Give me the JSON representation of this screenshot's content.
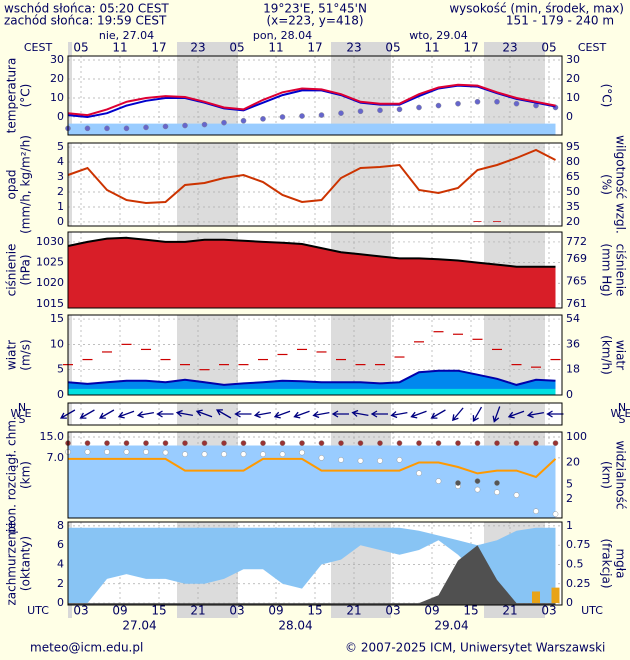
{
  "header": {
    "sunrise": "wschód słońca: 05:20 CEST",
    "sunset": "zachód słońca: 19:59 CEST",
    "coords": "19°23'E, 51°45'N",
    "grid": "(x=223, y=418)",
    "height_title": "wysokość (min, środek, max)",
    "height_values": "151 - 179 - 240 m"
  },
  "footer": {
    "email": "meteo@icm.edu.pl",
    "copyright": "© 2007-2025 ICM, Uniwersytet Warszawski"
  },
  "time": {
    "label_top": "CEST",
    "label_bottom": "UTC",
    "xlim": [
      1,
      77
    ],
    "x": [
      1,
      4,
      7,
      10,
      13,
      16,
      19,
      22,
      25,
      28,
      31,
      34,
      37,
      40,
      43,
      46,
      49,
      52,
      55,
      58,
      61,
      64,
      67,
      70,
      73,
      76
    ],
    "xticks_cest": [
      {
        "value": 3,
        "label": "05"
      },
      {
        "value": 9,
        "label": "11"
      },
      {
        "value": 15,
        "label": "17"
      },
      {
        "value": 21,
        "label": "23"
      },
      {
        "value": 27,
        "label": "05"
      },
      {
        "value": 33,
        "label": "11"
      },
      {
        "value": 39,
        "label": "17"
      },
      {
        "value": 45,
        "label": "23"
      },
      {
        "value": 51,
        "label": "05"
      },
      {
        "value": 57,
        "label": "11"
      },
      {
        "value": 63,
        "label": "17"
      },
      {
        "value": 69,
        "label": "23"
      },
      {
        "value": 75,
        "label": "05"
      }
    ],
    "xticks_utc": [
      {
        "value": 3,
        "label": "03"
      },
      {
        "value": 9,
        "label": "09"
      },
      {
        "value": 15,
        "label": "15"
      },
      {
        "value": 21,
        "label": "21"
      },
      {
        "value": 27,
        "label": "03"
      },
      {
        "value": 33,
        "label": "09"
      },
      {
        "value": 39,
        "label": "15"
      },
      {
        "value": 45,
        "label": "21"
      },
      {
        "value": 51,
        "label": "03"
      },
      {
        "value": 57,
        "label": "09"
      },
      {
        "value": 63,
        "label": "15"
      },
      {
        "value": 69,
        "label": "21"
      },
      {
        "value": 75,
        "label": "03"
      }
    ],
    "day_labels": [
      {
        "value": 10,
        "label": "nie, 27.04"
      },
      {
        "value": 34,
        "label": "pon, 28.04"
      },
      {
        "value": 58,
        "label": "wto, 29.04"
      }
    ],
    "date_labels": [
      {
        "value": 12,
        "label": "27.04"
      },
      {
        "value": 36,
        "label": "28.04"
      },
      {
        "value": 60,
        "label": "29.04"
      }
    ]
  },
  "chart_data": [
    {
      "type": "line",
      "ylabel": [
        "temperatura",
        "(°C)"
      ],
      "y2label": [
        "(°C)"
      ],
      "ylim": [
        -9.5,
        32.1
      ],
      "yticks": [
        0,
        10,
        20,
        30
      ],
      "y2lim": [
        -9.5,
        32.1
      ],
      "y2ticks": [
        0,
        10,
        20,
        30
      ],
      "series": [
        {
          "style": "area",
          "color": "#99ccff",
          "values": [
            -3.5,
            -3.5,
            -3.5,
            -3.5,
            -3.5,
            -3.5,
            -3.5,
            -3.5,
            -3.5,
            -3.5,
            -3.5,
            -3.5,
            -3.5,
            -3.5,
            -3.5,
            -3.5,
            -3.5,
            -3.5,
            -3.5,
            -3.5,
            -3.5,
            -3.5,
            -3.5,
            -3.5,
            -3.5,
            -3.5
          ]
        },
        {
          "style": "dots",
          "color": "#6666cc",
          "values": [
            -6,
            -6,
            -6,
            -6,
            -5.5,
            -5,
            -4.5,
            -4,
            -3,
            -2,
            -1,
            0,
            0.5,
            1,
            2,
            3,
            3.5,
            4,
            5,
            6,
            7,
            8,
            8,
            7,
            6,
            5
          ]
        },
        {
          "style": "line",
          "color": "#0000cc",
          "values": [
            1,
            0,
            2,
            6,
            8.5,
            10,
            10,
            7.5,
            4.5,
            3.5,
            7.5,
            11.5,
            14,
            14,
            11.5,
            7.5,
            6.5,
            6.5,
            11,
            15,
            16.5,
            16,
            12.5,
            9.5,
            7.5,
            5.5
          ]
        },
        {
          "style": "line",
          "color": "#dd0033",
          "values": [
            2,
            1,
            4,
            8,
            10,
            11,
            10.5,
            8,
            5,
            4,
            9,
            13,
            15,
            14.5,
            12,
            8,
            7,
            7,
            12,
            15.5,
            17,
            16.5,
            13,
            10,
            8,
            6
          ]
        }
      ]
    },
    {
      "type": "combo",
      "ylabel": [
        "opad",
        "(mm/h, kg/m²/h)"
      ],
      "y2label": [
        "(%)",
        "wilgotność wzgl."
      ],
      "ylim": [
        -0.27,
        5.27
      ],
      "yticks": [
        0,
        1,
        2,
        3,
        4,
        5
      ],
      "y2lim": [
        16,
        99
      ],
      "y2ticks": [
        20,
        35,
        50,
        65,
        80,
        95
      ],
      "series": [
        {
          "style": "line",
          "axis": "y2",
          "color": "#cc3300",
          "values": [
            67,
            74,
            52,
            42,
            39,
            40,
            57,
            59,
            64,
            67,
            60,
            47,
            40,
            42,
            64,
            74,
            75,
            77,
            52,
            49,
            54,
            72,
            77,
            84,
            92,
            82
          ]
        },
        {
          "style": "bar",
          "color": "#cc0000",
          "values": [
            0,
            0,
            0,
            0,
            0,
            0,
            0,
            0,
            0,
            0,
            0,
            0,
            0,
            0,
            0,
            0,
            0,
            0,
            0,
            0,
            0,
            0.05,
            0.05,
            0,
            0,
            0
          ]
        }
      ]
    },
    {
      "type": "area",
      "ylabel": [
        "ciśnienie",
        "(hPa)"
      ],
      "y2label": [
        "(mm Hg)",
        "ciśnienie"
      ],
      "ylim": [
        1014,
        1032.4
      ],
      "yticks": [
        1015,
        1020,
        1025,
        1030
      ],
      "y2lim": [
        760.3,
        773.8
      ],
      "y2ticks": [
        761,
        765,
        769,
        772
      ],
      "series": [
        {
          "style": "area",
          "color": "#d81e28",
          "edge": "#000000",
          "values": [
            1029,
            1030,
            1030.8,
            1031,
            1030.5,
            1030,
            1030,
            1030.5,
            1030.5,
            1030.3,
            1030,
            1029.8,
            1029.5,
            1028.5,
            1027.5,
            1027,
            1026.5,
            1026,
            1026,
            1025.8,
            1025.5,
            1025,
            1024.5,
            1024,
            1024,
            1024
          ]
        }
      ]
    },
    {
      "type": "line",
      "ylabel": [
        "wiatr",
        "(m/s)"
      ],
      "y2label": [
        "(km/h)",
        "wiatr"
      ],
      "ylim": [
        0,
        15.8
      ],
      "yticks": [
        0,
        5,
        10,
        15
      ],
      "y2lim": [
        0,
        56.9
      ],
      "y2ticks": [
        0,
        18,
        36,
        54
      ],
      "series": [
        {
          "style": "area",
          "color": "#0088ee",
          "edge": "#0000aa",
          "values": [
            2.5,
            2.2,
            2.5,
            2.8,
            2.8,
            2.5,
            3,
            2.5,
            2,
            2.3,
            2.5,
            2.8,
            2.7,
            2.5,
            2.5,
            2.5,
            2.3,
            2.5,
            4.5,
            4.8,
            4.8,
            4,
            3.2,
            2,
            3,
            2.8
          ]
        },
        {
          "style": "area",
          "color": "#00e0e0",
          "values": [
            1.2,
            1.2,
            1.2,
            1.2,
            1.2,
            1.2,
            1.2,
            1.2,
            1.2,
            1.2,
            1.2,
            1.2,
            1.2,
            1.2,
            1.2,
            1.2,
            1.2,
            1.2,
            1.2,
            1.2,
            1.2,
            1.2,
            1.2,
            1.2,
            1.2,
            1.2
          ]
        },
        {
          "style": "dash",
          "color": "#cc0000",
          "values": [
            6,
            7,
            8.5,
            10,
            9,
            7,
            6,
            5,
            6,
            6,
            7,
            8,
            9,
            8.5,
            7,
            6,
            6,
            7.5,
            10.5,
            12.5,
            12,
            11,
            9,
            6,
            5.5,
            7
          ]
        }
      ]
    },
    {
      "type": "vector",
      "compass": {
        "w": "W",
        "n": "N",
        "s": "S",
        "e": "E"
      },
      "series": [
        {
          "style": "arrow",
          "color": "#000080",
          "values": [
            60,
            60,
            60,
            70,
            80,
            90,
            100,
            110,
            120,
            90,
            80,
            70,
            70,
            80,
            90,
            100,
            90,
            80,
            70,
            60,
            40,
            30,
            20,
            70,
            80,
            90
          ]
        }
      ]
    },
    {
      "type": "scatter",
      "log": true,
      "ylabel": [
        "pion. rozciągł. chm.",
        "(km)"
      ],
      "y2label": [
        "(km)",
        "widzialność"
      ],
      "ylim": [
        0.78,
        18
      ],
      "yticks": [
        {
          "value": 15,
          "label": "15.0"
        },
        {
          "value": 7,
          "label": "7.0"
        }
      ],
      "y2lim": [
        0.6,
        137
      ],
      "y2ticks": [
        100,
        20,
        5,
        2
      ],
      "series": [
        {
          "style": "area",
          "color": "#99ccff",
          "values": [
            11,
            11,
            11,
            11,
            11,
            11,
            11,
            11,
            11,
            11,
            11,
            11,
            11,
            11,
            11,
            11,
            11,
            11,
            11,
            11,
            11,
            11,
            11,
            11,
            11,
            11
          ]
        },
        {
          "style": "dots",
          "color": "#993333",
          "values": [
            12,
            12,
            12,
            12,
            12,
            12,
            12,
            12,
            12,
            12,
            12,
            12,
            12,
            12,
            12,
            12,
            12,
            12,
            12,
            12,
            12,
            12,
            12,
            12,
            12,
            12
          ]
        },
        {
          "style": "dots",
          "color": "#ffffff",
          "values": [
            8.7,
            8.7,
            8.7,
            8.7,
            8.7,
            8.5,
            8,
            8,
            8,
            8,
            8,
            8,
            8.5,
            7,
            6.5,
            6.3,
            6.3,
            6.5,
            4,
            3,
            2.5,
            2.2,
            2,
            1.8,
            1,
            0.9
          ]
        },
        {
          "style": "dots",
          "color": "#555555",
          "values": [
            null,
            null,
            null,
            null,
            null,
            null,
            null,
            null,
            null,
            null,
            null,
            null,
            null,
            null,
            null,
            null,
            null,
            null,
            null,
            null,
            2.8,
            3,
            2.8,
            null,
            null,
            null
          ]
        },
        {
          "style": "line",
          "axis": "y2",
          "color": "#ff9900",
          "values": [
            25,
            25,
            25,
            25,
            25,
            25,
            12,
            12,
            12,
            12,
            25,
            25,
            25,
            12,
            12,
            12,
            12,
            12,
            20,
            20,
            15,
            10,
            12,
            12,
            8,
            25
          ]
        }
      ]
    },
    {
      "type": "area",
      "ylabel": [
        "zachmurzenie",
        "(oktanty)"
      ],
      "y2label": [
        "(frakcja)",
        "mgła"
      ],
      "ylim": [
        -0.2,
        8.4
      ],
      "yticks": [
        0,
        2,
        4,
        6,
        8
      ],
      "y2lim": [
        -0.025,
        1.05
      ],
      "y2ticks": [
        0,
        0.25,
        0.5,
        0.75,
        1
      ],
      "series": [
        {
          "style": "band",
          "color": "#88c4f4",
          "values": [
            7.8,
            7.8,
            7.8,
            7.8,
            7.8,
            7.8,
            7.8,
            7.8,
            7.8,
            7.8,
            7.8,
            7.8,
            7.8,
            7.8,
            7.8,
            7.8,
            7.8,
            7.8,
            7.5,
            7,
            6.5,
            6,
            6.5,
            7.5,
            7.8,
            7.8
          ],
          "lower": [
            0,
            0,
            2.5,
            3,
            2.5,
            2.5,
            2,
            2,
            2.5,
            3.5,
            3.5,
            2,
            1.5,
            4,
            4.5,
            6,
            5.5,
            5,
            5.5,
            6.5,
            5,
            3,
            0.5,
            0,
            0,
            0
          ]
        },
        {
          "style": "area",
          "axis": "y2",
          "color": "#505050",
          "values": [
            0,
            0,
            0,
            0,
            0,
            0,
            0,
            0,
            0,
            0,
            0,
            0,
            0,
            0,
            0,
            0,
            0,
            0,
            0,
            0.1,
            0.55,
            0.75,
            0.3,
            0,
            0,
            0
          ]
        },
        {
          "style": "bar",
          "axis": "y2",
          "color": "#e8a317",
          "values": [
            null,
            null,
            null,
            null,
            null,
            null,
            null,
            null,
            null,
            null,
            null,
            null,
            null,
            null,
            null,
            null,
            null,
            null,
            null,
            null,
            null,
            null,
            null,
            null,
            0.15,
            0.2
          ]
        }
      ]
    }
  ]
}
